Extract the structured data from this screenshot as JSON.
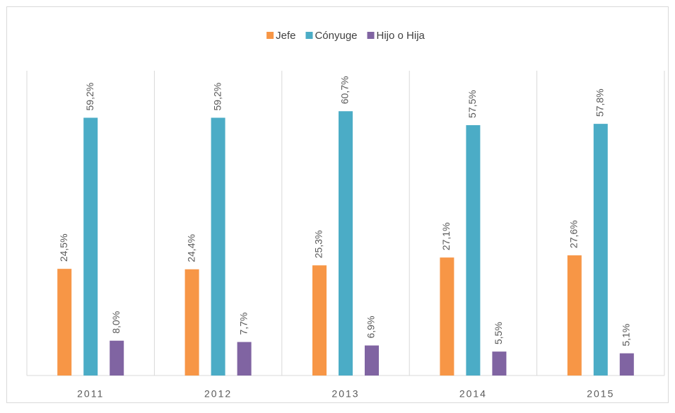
{
  "chart_data": {
    "type": "bar",
    "categories": [
      "2011",
      "2012",
      "2013",
      "2014",
      "2015"
    ],
    "series": [
      {
        "name": "Jefe",
        "color": "#f79646",
        "values": [
          24.5,
          24.4,
          25.3,
          27.1,
          27.6
        ],
        "value_labels": [
          "24,5%",
          "24,4%",
          "25,3%",
          "27,1%",
          "27,6%"
        ]
      },
      {
        "name": "Cónyuge",
        "color": "#4bacc6",
        "values": [
          59.2,
          59.2,
          60.7,
          57.5,
          57.8
        ],
        "value_labels": [
          "59,2%",
          "59,2%",
          "60,7%",
          "57,5%",
          "57,8%"
        ]
      },
      {
        "name": "Hijo o Hija",
        "color": "#8064a2",
        "values": [
          8.0,
          7.7,
          6.9,
          5.5,
          5.1
        ],
        "value_labels": [
          "8,0%",
          "7,7%",
          "6,9%",
          "5,5%",
          "5,1%"
        ]
      }
    ],
    "ylim": [
      0,
      70
    ],
    "legend": "top"
  }
}
